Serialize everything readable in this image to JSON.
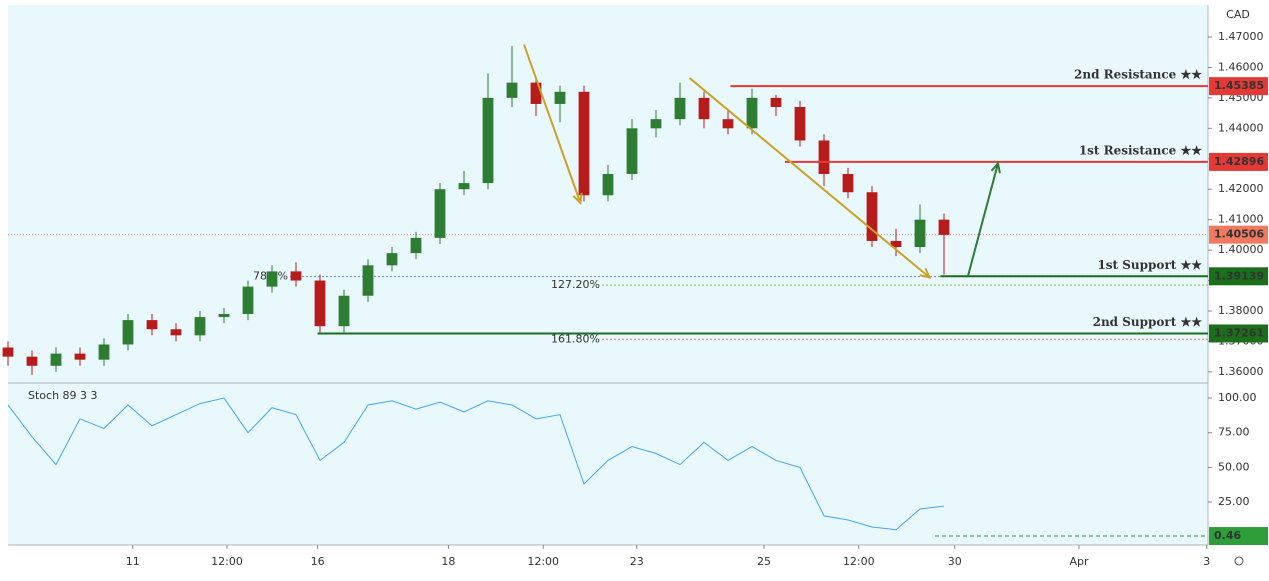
{
  "currency": "CAD",
  "chart_data": [
    {
      "type": "candlestick",
      "x": [
        0,
        2,
        4,
        6,
        8,
        10,
        12,
        14,
        16,
        18,
        20,
        22,
        24,
        26,
        28,
        30,
        32,
        34,
        36,
        38,
        40,
        42,
        44,
        46,
        48,
        50,
        52,
        54,
        56,
        58,
        60,
        62,
        64,
        66,
        68,
        70,
        72,
        74,
        76,
        78
      ],
      "open": [
        1.368,
        1.365,
        1.362,
        1.366,
        1.364,
        1.369,
        1.377,
        1.374,
        1.372,
        1.378,
        1.379,
        1.388,
        1.393,
        1.39,
        1.375,
        1.385,
        1.395,
        1.399,
        1.404,
        1.42,
        1.422,
        1.45,
        1.455,
        1.448,
        1.452,
        1.418,
        1.425,
        1.44,
        1.443,
        1.45,
        1.443,
        1.44,
        1.45,
        1.447,
        1.436,
        1.425,
        1.419,
        1.403,
        1.401,
        1.41
      ],
      "high": [
        1.37,
        1.367,
        1.368,
        1.368,
        1.371,
        1.379,
        1.379,
        1.376,
        1.38,
        1.381,
        1.39,
        1.395,
        1.396,
        1.392,
        1.387,
        1.397,
        1.401,
        1.406,
        1.422,
        1.426,
        1.458,
        1.467,
        1.457,
        1.454,
        1.454,
        1.428,
        1.443,
        1.446,
        1.455,
        1.452,
        1.446,
        1.453,
        1.451,
        1.449,
        1.438,
        1.427,
        1.421,
        1.407,
        1.415,
        1.412
      ],
      "low": [
        1.362,
        1.359,
        1.36,
        1.362,
        1.362,
        1.367,
        1.372,
        1.37,
        1.37,
        1.376,
        1.377,
        1.386,
        1.388,
        1.373,
        1.373,
        1.383,
        1.393,
        1.397,
        1.402,
        1.418,
        1.42,
        1.447,
        1.444,
        1.442,
        1.416,
        1.416,
        1.423,
        1.437,
        1.441,
        1.44,
        1.438,
        1.438,
        1.444,
        1.434,
        1.421,
        1.417,
        1.401,
        1.398,
        1.399,
        1.392
      ],
      "close": [
        1.365,
        1.362,
        1.366,
        1.364,
        1.369,
        1.377,
        1.374,
        1.372,
        1.378,
        1.379,
        1.388,
        1.393,
        1.39,
        1.375,
        1.385,
        1.395,
        1.399,
        1.404,
        1.42,
        1.422,
        1.45,
        1.455,
        1.448,
        1.452,
        1.418,
        1.425,
        1.44,
        1.443,
        1.45,
        1.443,
        1.44,
        1.45,
        1.447,
        1.436,
        1.425,
        1.419,
        1.403,
        1.401,
        1.41,
        1.405
      ],
      "up_color": "#2e7d32",
      "down_color": "#b71c1c",
      "xlim": [
        0,
        100
      ],
      "xticks": [
        {
          "value": 10.4,
          "label": "11"
        },
        {
          "value": 18.25,
          "label": "12:00"
        },
        {
          "value": 25.8,
          "label": "16"
        },
        {
          "value": 36.7,
          "label": "18"
        },
        {
          "value": 44.6,
          "label": "12:00"
        },
        {
          "value": 52.4,
          "label": "23"
        },
        {
          "value": 63,
          "label": "25"
        },
        {
          "value": 70.9,
          "label": "12:00"
        },
        {
          "value": 78.9,
          "label": "30"
        },
        {
          "value": 89.25,
          "label": "Apr"
        },
        {
          "value": 99.9,
          "label": "3"
        }
      ],
      "ylim": [
        1.357,
        1.4805
      ],
      "yticks": [
        {
          "value": 1.36,
          "label": "1.36000"
        },
        {
          "value": 1.37,
          "label": "1.37000"
        },
        {
          "value": 1.38,
          "label": "1.38000"
        },
        {
          "value": 1.39,
          "label": "1.39000"
        },
        {
          "value": 1.4,
          "label": "1.40000"
        },
        {
          "value": 1.41,
          "label": "1.41000"
        },
        {
          "value": 1.42,
          "label": "1.42000"
        },
        {
          "value": 1.43,
          "label": "1.43000"
        },
        {
          "value": 1.44,
          "label": "1.44000"
        },
        {
          "value": 1.45,
          "label": "1.45000"
        },
        {
          "value": 1.46,
          "label": "1.46000"
        },
        {
          "value": 1.47,
          "label": "1.47000"
        }
      ],
      "levels": [
        {
          "name": "2nd Resistance ★★",
          "value": 1.45385,
          "x_start": 60.2,
          "color": "#e53935"
        },
        {
          "name": "1st Resistance ★★",
          "value": 1.42896,
          "x_start": 64.75,
          "color": "#e53935"
        },
        {
          "name": "1st Support ★★",
          "value": 1.39139,
          "x_start": 77.7,
          "color": "#1b6e1b"
        },
        {
          "name": "2nd Support ★★",
          "value": 1.37261,
          "x_start": 25.8,
          "color": "#1b6e1b"
        }
      ],
      "last_price": {
        "value": 1.40506,
        "color": "#ef7a5f"
      },
      "fib_levels": [
        {
          "label": "78.6%",
          "value": 1.3913,
          "x_start": 23.5,
          "color": "#5c8fd6"
        },
        {
          "label": "127.20%",
          "value": 1.3885,
          "x_start": 49.5,
          "color": "#8bc34a"
        },
        {
          "label": "161.80%",
          "value": 1.3707,
          "x_start": 49.5,
          "color": "#e57373"
        }
      ],
      "arrows": [
        {
          "from": [
            43,
            1.4675
          ],
          "to": [
            47.7,
            1.4155
          ],
          "color": "#c9a227"
        },
        {
          "from": [
            56.8,
            1.4565
          ],
          "to": [
            76.8,
            1.391
          ],
          "color": "#c9a227"
        },
        {
          "from": [
            80,
            1.3915
          ],
          "to": [
            82.5,
            1.4285
          ],
          "color": "#2e7d32"
        }
      ]
    },
    {
      "type": "line",
      "title": "Stoch 89 3 3",
      "x": [
        0,
        2,
        4,
        6,
        8,
        10,
        12,
        14,
        16,
        18,
        20,
        22,
        24,
        26,
        28,
        30,
        32,
        34,
        36,
        38,
        40,
        42,
        44,
        46,
        48,
        50,
        52,
        54,
        56,
        58,
        60,
        62,
        64,
        66,
        68,
        70,
        72,
        74,
        76,
        78
      ],
      "values": [
        95,
        72,
        52,
        85,
        78,
        95,
        80,
        88,
        96,
        100,
        75,
        93,
        88,
        55,
        68,
        95,
        98,
        92,
        97,
        90,
        98,
        95,
        85,
        88,
        38,
        55,
        65,
        60,
        52,
        68,
        55,
        65,
        55,
        50,
        15,
        12,
        7,
        5,
        20,
        22
      ],
      "color": "#42a5f5",
      "xlim": [
        0,
        100
      ],
      "ylim": [
        -6,
        109.4
      ],
      "yticks": [
        {
          "value": 100,
          "label": "100.00"
        },
        {
          "value": 75,
          "label": "75.00"
        },
        {
          "value": 50,
          "label": "50.00"
        },
        {
          "value": 25,
          "label": "25.00"
        }
      ],
      "level": {
        "value": 0.46,
        "x_start": 77.25,
        "color": "#2e9d3a"
      }
    }
  ]
}
